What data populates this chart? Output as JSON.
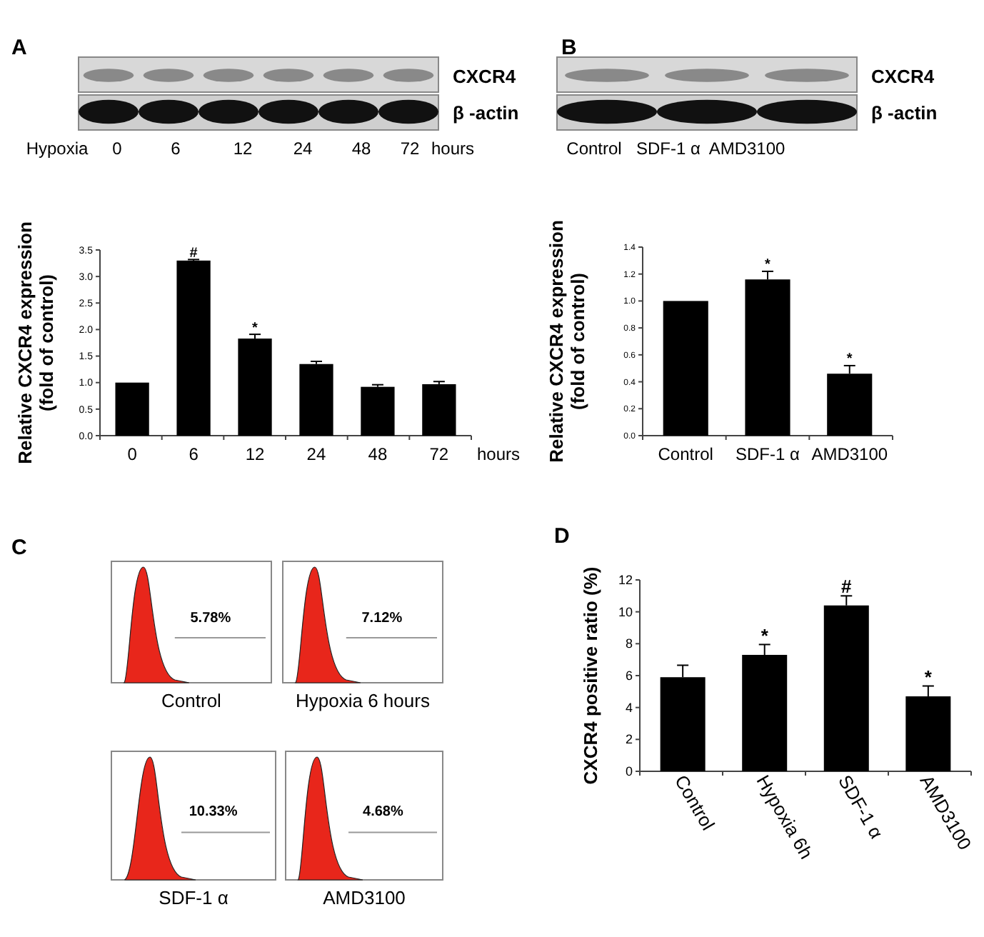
{
  "chart_data": [
    {
      "type": "bar",
      "title": "A",
      "ylabel": "Relative CXCR4 expression\n(fold of control)",
      "xlabel": "hours",
      "categories": [
        "0",
        "6",
        "12",
        "24",
        "48",
        "72"
      ],
      "values": [
        1.0,
        3.3,
        1.83,
        1.35,
        0.92,
        0.97
      ],
      "errors": [
        null,
        0.02,
        0.08,
        0.05,
        0.04,
        0.05
      ],
      "color": "#000000",
      "ylim": [
        0,
        3.5
      ],
      "yticks": [
        {
          "value": 0,
          "label": "0.0"
        },
        {
          "value": 0.5,
          "label": "0.5"
        },
        {
          "value": 1,
          "label": "1.0"
        },
        {
          "value": 1.5,
          "label": "1.5"
        },
        {
          "value": 2,
          "label": "2.0"
        },
        {
          "value": 2.5,
          "label": "2.5"
        },
        {
          "value": 3,
          "label": "3.0"
        },
        {
          "value": 3.5,
          "label": "3.5"
        }
      ],
      "annotations": [
        "CXCR4",
        "β -actin",
        "Hypoxia",
        "0",
        "6",
        "12",
        "24",
        "48",
        "72",
        "hours",
        {
          "text": "#",
          "x": "6",
          "y": 3.36
        },
        {
          "text": "*",
          "x": "12",
          "y": 1.95
        }
      ]
    },
    {
      "type": "bar",
      "title": "B",
      "ylabel": "Relative CXCR4 expression\n(fold of control)",
      "categories": [
        "Control",
        "SDF-1 α",
        "AMD3100"
      ],
      "values": [
        1.0,
        1.16,
        0.46
      ],
      "errors": [
        null,
        0.06,
        0.06
      ],
      "color": "#000000",
      "ylim": [
        0,
        1.4
      ],
      "yticks": [
        {
          "value": 0,
          "label": "0.0"
        },
        {
          "value": 0.2,
          "label": "0.2"
        },
        {
          "value": 0.4,
          "label": "0.4"
        },
        {
          "value": 0.6,
          "label": "0.6"
        },
        {
          "value": 0.8,
          "label": "0.8"
        },
        {
          "value": 1,
          "label": "1.0"
        },
        {
          "value": 1.2,
          "label": "1.2"
        },
        {
          "value": 1.4,
          "label": "1.4"
        }
      ],
      "annotations": [
        "CXCR4",
        "β -actin",
        "Control",
        "SDF-1 α",
        "AMD3100",
        {
          "text": "*",
          "x": "SDF-1 α",
          "y": 1.24
        },
        {
          "text": "*",
          "x": "AMD3100",
          "y": 0.54
        }
      ]
    },
    {
      "type": "other",
      "title": "C",
      "annotations": [
        "5.78%",
        "Control",
        "7.12%",
        "Hypoxia 6 hours",
        "10.33%",
        "SDF-1 α",
        "4.68%",
        "AMD3100"
      ]
    },
    {
      "type": "bar",
      "title": "D",
      "ylabel": "CXCR4 positive ratio (%)",
      "categories": [
        "Control",
        "Hypoxia 6h",
        "SDF-1 α",
        "AMD3100"
      ],
      "values": [
        5.9,
        7.3,
        10.4,
        4.7
      ],
      "errors": [
        0.75,
        0.65,
        0.6,
        0.65
      ],
      "color": "#000000",
      "ylim": [
        0,
        12
      ],
      "yticks": [
        0,
        2,
        4,
        6,
        8,
        10,
        12
      ],
      "annotations": [
        {
          "text": "*",
          "x": "Hypoxia 6h",
          "y": 8.1
        },
        {
          "text": "#",
          "x": "SDF-1 α",
          "y": 11.2
        },
        {
          "text": "*",
          "x": "AMD3100",
          "y": 5.5
        }
      ]
    }
  ]
}
